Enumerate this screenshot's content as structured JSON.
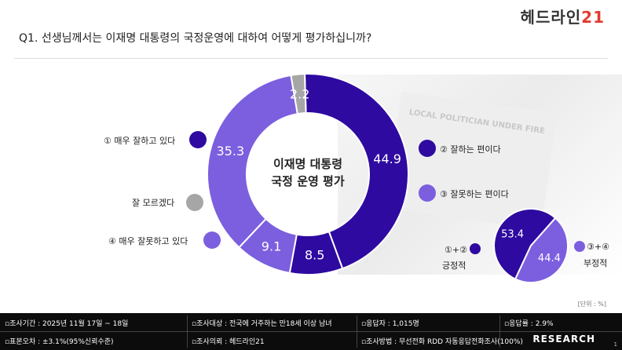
{
  "header": {
    "logo_text": "헤드라인",
    "logo_num": "21",
    "question": "Q1. 선생님께서는 이재명 대통령의 국정운영에 대하여 어떻게 평가하십니까?"
  },
  "background": {
    "paper_text": "LOCAL POLITICIAN UNDER FIRE"
  },
  "chart_data": [
    {
      "type": "pie",
      "subtype": "donut",
      "title": "이재명 대통령\n국정 운영 평가",
      "title_line1": "이재명 대통령",
      "title_line2": "국정 운영 평가",
      "categories": [
        "① 매우 잘하고 있다",
        "② 잘하는 편이다",
        "③ 잘못하는 편이다",
        "④ 매우 잘못하고 있다",
        "잘 모르겠다"
      ],
      "values": [
        44.9,
        8.5,
        9.1,
        35.3,
        2.2
      ],
      "value_labels": [
        "44.9",
        "8.5",
        "9.1",
        "35.3",
        "2.2"
      ],
      "colors": [
        "#2e0aa0",
        "#2e0aa0",
        "#7b5fdf",
        "#7b5fdf",
        "#a6a6a6"
      ],
      "unit": "%"
    },
    {
      "type": "pie",
      "categories": [
        "①+② 긍정적",
        "③+④ 부정적"
      ],
      "values": [
        53.4,
        44.4
      ],
      "value_labels": [
        "53.4",
        "44.4"
      ],
      "colors": [
        "#2e0aa0",
        "#7b5fdf"
      ],
      "unit": "%"
    }
  ],
  "legend": {
    "left": [
      {
        "label": "① 매우 잘하고 있다",
        "color": "#2e0aa0"
      },
      {
        "label": "잘 모르겠다",
        "color": "#a6a6a6"
      },
      {
        "label": "④ 매우 잘못하고 있다",
        "color": "#7b5fdf"
      }
    ],
    "right": [
      {
        "label": "② 잘하는 편이다",
        "color": "#2e0aa0"
      },
      {
        "label": "③ 잘못하는 편이다",
        "color": "#7b5fdf"
      }
    ],
    "mini": {
      "pos_line1": "①+②",
      "pos_line2": "긍정적",
      "neg_line1": "③+④",
      "neg_line2": "부정적",
      "pos_color": "#2e0aa0",
      "neg_color": "#7b5fdf"
    }
  },
  "unit_note": "[단위 : %]",
  "footer": {
    "period": "▫조사기간 : 2025년 11월 17일 ~ 18일",
    "target": "▫조사대상 : 전국에 거주하는 만18세 이상 남녀",
    "respondents": "▫응답자 : 1,015명",
    "response_rate": "▫응답률 : 2.9%",
    "error": "▫표본오차 : ±3.1%(95%신뢰수준)",
    "client": "▫조사의뢰 : 헤드라인21",
    "method": "▫조사방법 : 무선전화 RDD 자동응답전화조사(100%)",
    "research_logo": "RESEARCH",
    "page": "1"
  }
}
